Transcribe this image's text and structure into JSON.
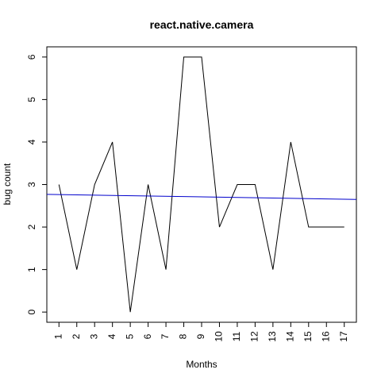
{
  "chart_data": {
    "type": "line",
    "title": "react.native.camera",
    "xlabel": "Months",
    "ylabel": "bug count",
    "x": [
      1,
      2,
      3,
      4,
      5,
      6,
      7,
      8,
      9,
      10,
      11,
      12,
      13,
      14,
      15,
      16,
      17
    ],
    "xlim": [
      0.32,
      17.68
    ],
    "ylim": [
      -0.24,
      6.24
    ],
    "yticks": [
      0,
      1,
      2,
      3,
      4,
      5,
      6
    ],
    "grid": false,
    "series": [
      {
        "color": "#000000",
        "values": [
          3,
          1,
          3,
          4,
          0,
          3,
          1,
          6,
          6,
          2,
          3,
          3,
          1,
          4,
          2,
          2,
          2
        ]
      },
      {
        "color": "#0000cc",
        "kind": "trend",
        "x": [
          0.32,
          17.68
        ],
        "values": [
          2.77,
          2.65
        ]
      }
    ]
  }
}
